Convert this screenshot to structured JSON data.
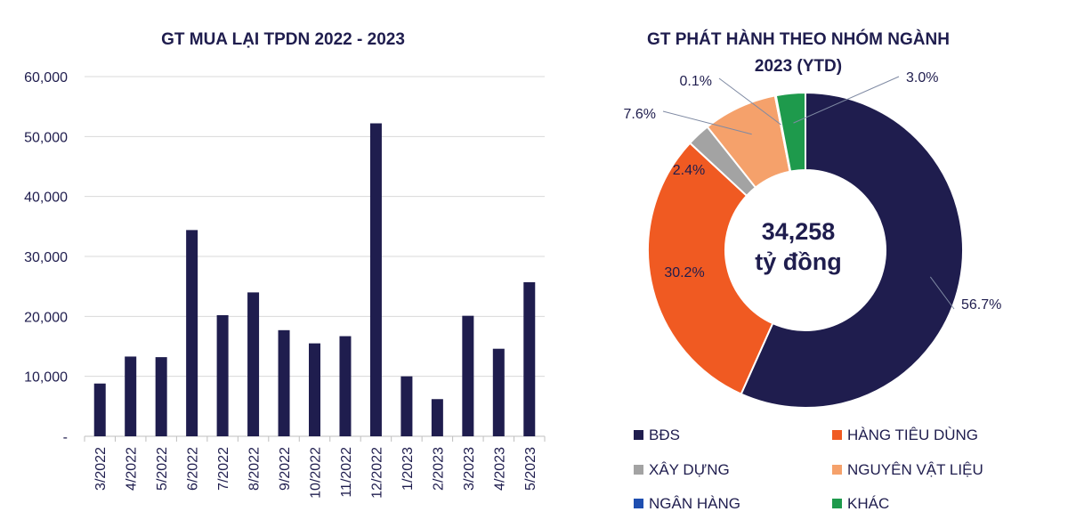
{
  "chart_data": [
    {
      "type": "bar",
      "title": "GT MUA LẠI TPDN 2022 - 2023",
      "categories": [
        "3/2022",
        "4/2022",
        "5/2022",
        "6/2022",
        "7/2022",
        "8/2022",
        "9/2022",
        "10/2022",
        "11/2022",
        "12/2022",
        "1/2023",
        "2/2023",
        "3/2023",
        "4/2023",
        "5/2023"
      ],
      "values": [
        8800,
        13300,
        13200,
        34400,
        20200,
        24000,
        17700,
        15500,
        16700,
        52200,
        10000,
        6200,
        20100,
        14600,
        25700
      ],
      "ylim": [
        0,
        60000
      ],
      "yticks": [
        "-",
        "10,000",
        "20,000",
        "30,000",
        "40,000",
        "50,000",
        "60,000"
      ],
      "ytick_values": [
        0,
        10000,
        20000,
        30000,
        40000,
        50000,
        60000
      ],
      "grid": true,
      "color": "#1f1d4e"
    },
    {
      "type": "pie",
      "title_lines": [
        "GT PHÁT HÀNH THEO NHÓM NGÀNH",
        "2023 (YTD)"
      ],
      "center_lines": [
        "34,258",
        "tỷ đồng"
      ],
      "slices": [
        {
          "name": "BĐS",
          "value": 56.7,
          "label": "56.7%",
          "color": "#1f1d4e"
        },
        {
          "name": "HÀNG TIÊU DÙNG",
          "value": 30.2,
          "label": "30.2%",
          "color": "#f05a22"
        },
        {
          "name": "XÂY DỰNG",
          "value": 2.4,
          "label": "2.4%",
          "color": "#a3a3a3"
        },
        {
          "name": "NGUYÊN VẬT LIỆU",
          "value": 7.6,
          "label": "7.6%",
          "color": "#f5a16b"
        },
        {
          "name": "NGÂN HÀNG",
          "value": 0.1,
          "label": "0.1%",
          "color": "#1f4fb0"
        },
        {
          "name": "KHÁC",
          "value": 3.0,
          "label": "3.0%",
          "color": "#1e9a4c"
        }
      ],
      "legend": [
        "BĐS",
        "HÀNG TIÊU DÙNG",
        "XÂY DỰNG",
        "NGUYÊN VẬT LIỆU",
        "NGÂN HÀNG",
        "KHÁC"
      ],
      "legend_placement": "bottom"
    }
  ]
}
